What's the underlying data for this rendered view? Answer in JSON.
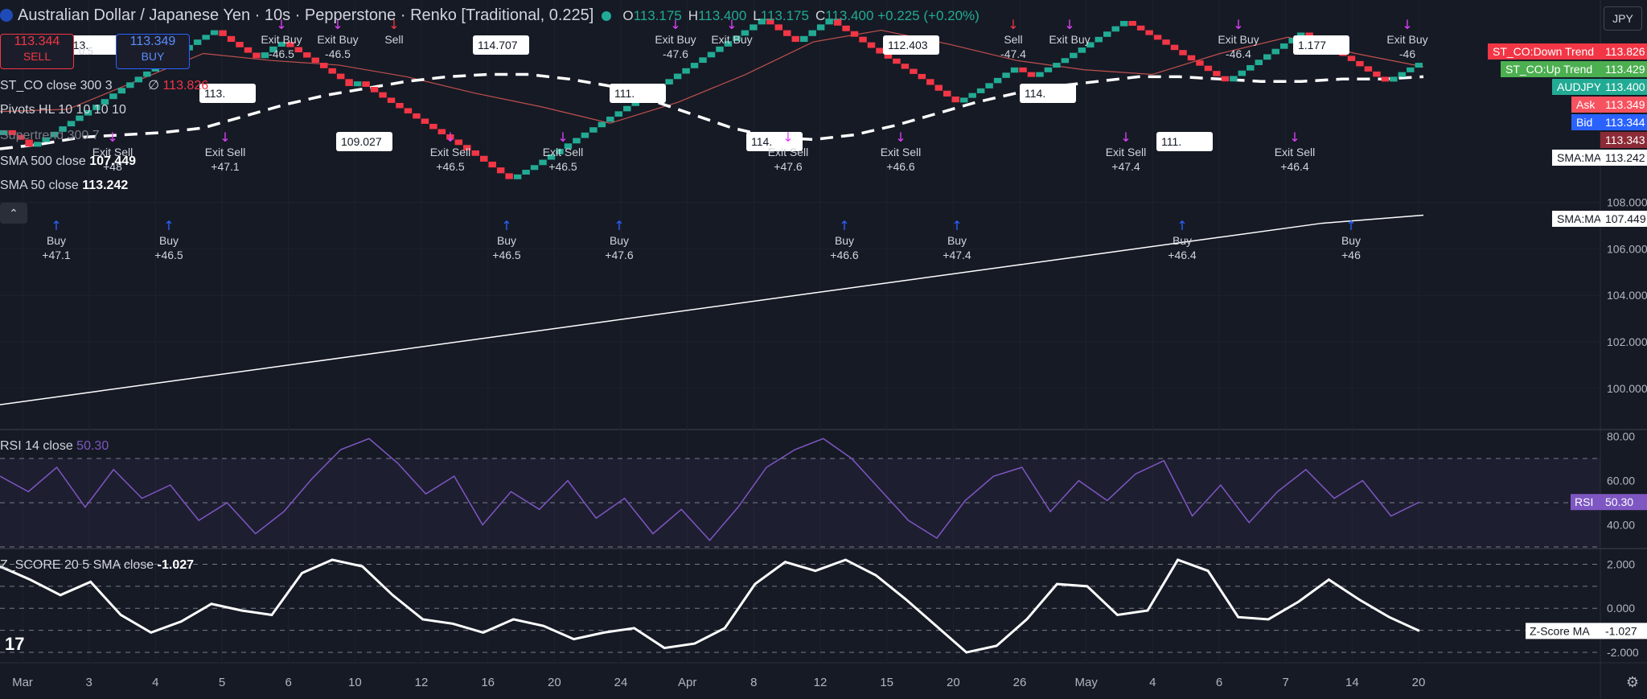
{
  "header": {
    "title": "Australian Dollar / Japanese Yen · 10s · Pepperstone · Renko [Traditional, 0.225]",
    "ohlc": {
      "o_label": "O",
      "o": "113.175",
      "h_label": "H",
      "h": "113.400",
      "l_label": "L",
      "l": "113.175",
      "c_label": "C",
      "c": "113.400",
      "change": "+0.225 (+0.20%)"
    }
  },
  "trade": {
    "sell_price": "113.344",
    "sell_label": "SELL",
    "buy_price": "113.349",
    "buy_label": "BUY",
    "spread": "0.5"
  },
  "legend": {
    "st_co": "ST_CO close 300 3",
    "st_co_value": "113.826",
    "pivots": "Pivots HL 10 10 10 10",
    "supertrend": "Supertrend 300 7",
    "sma500": "SMA 500 close",
    "sma500_value": "107.449",
    "sma50": "SMA 50 close",
    "sma50_value": "113.242",
    "rsi": "RSI 14 close",
    "rsi_value": "50.30",
    "z": "Z_SCORE 20 5 SMA close",
    "z_value": "-1.027"
  },
  "currency_button": "JPY",
  "colors": {
    "up": "#22ab94",
    "down": "#f23645",
    "buy_arrow": "#2962ff",
    "exit_marker": "#e040fb",
    "rsi": "#7e57c2",
    "background": "#161a25",
    "sma": "#ffffff"
  },
  "chart_data": [
    {
      "type": "line",
      "title": "Renko AUDJPY",
      "x_ticks": [
        "Mar",
        "3",
        "4",
        "5",
        "6",
        "10",
        "12",
        "16",
        "20",
        "24",
        "Apr",
        "8",
        "12",
        "15",
        "20",
        "26",
        "May",
        "4",
        "6",
        "7",
        "14",
        "20"
      ],
      "y_ticks": [
        "100.000",
        "102.000",
        "104.000",
        "106.000",
        "108.000"
      ],
      "ylim": [
        98.3,
        116.7
      ],
      "series": [
        {
          "name": "AUDJPY renko close",
          "values": [
            110.9,
            111.1,
            110.7,
            110.4,
            110.6,
            110.8,
            112.2,
            113.4,
            114.3,
            115.0,
            115.4,
            114.9,
            114.2,
            114.7,
            114.9,
            114.0,
            113.3,
            113.0,
            113.2,
            112.5,
            111.6,
            110.7,
            110.0,
            109.0,
            109.6,
            111.0,
            112.6,
            114.0,
            115.4,
            115.9,
            114.9,
            115.9,
            115.6,
            114.4,
            113.3,
            112.3,
            112.9,
            113.8,
            113.4,
            113.6,
            114.2,
            115.8,
            115.0,
            114.1,
            113.2,
            113.9,
            115.3,
            114.9,
            114.3,
            113.4,
            113.2,
            114.0
          ]
        },
        {
          "name": "SMA 50",
          "values": [
            110.3,
            110.5,
            110.8,
            110.9,
            111.0,
            111.2,
            111.7,
            112.2,
            112.6,
            112.9,
            113.2,
            113.4,
            113.5,
            113.5,
            113.3,
            113.0,
            112.4,
            111.8,
            111.2,
            110.8,
            110.7,
            110.9,
            111.3,
            111.8,
            112.3,
            112.7,
            113.0,
            113.2,
            113.4,
            113.4,
            113.3,
            113.2,
            113.2,
            113.3,
            113.3,
            113.4
          ]
        },
        {
          "name": "SMA 500",
          "values": [
            99.3,
            99.9,
            100.5,
            101.1,
            101.7,
            102.3,
            102.9,
            103.5,
            104.1,
            104.7,
            105.3,
            105.9,
            106.5,
            107.1,
            107.45
          ]
        },
        {
          "name": "ST_CO",
          "values": [
            111.9,
            112.0,
            113.2,
            114.4,
            114.1,
            113.9,
            113.4,
            112.7,
            112.1,
            111.4,
            112.3,
            113.5,
            114.9,
            115.4,
            114.8,
            114.1,
            113.7,
            113.5,
            114.4,
            115.1,
            114.4,
            113.83
          ]
        }
      ],
      "right_labels": [
        {
          "name": "ST_CO:Down Trend",
          "value": "113.826"
        },
        {
          "name": "ST_CO:Up Trend",
          "value": "113.429"
        },
        {
          "name": "AUDJPY",
          "value": "113.400"
        },
        {
          "name": "Ask",
          "value": "113.349"
        },
        {
          "name": "Bid",
          "value": "113.344"
        },
        {
          "name": "",
          "value": "113.343"
        },
        {
          "name": "SMA:MA",
          "value": "113.242"
        },
        {
          "name": "SMA:MA",
          "value": "107.449"
        }
      ],
      "pivot_labels": [
        "113.",
        "113.",
        "109.027",
        "114.707",
        "111.",
        "114.",
        "112.403",
        "114.",
        "111.",
        "1.177"
      ],
      "signals": [
        {
          "label": "Buy",
          "value": "+47.1"
        },
        {
          "label": "Exit Sell",
          "value": "+48"
        },
        {
          "label": "Buy",
          "value": "+46.5"
        },
        {
          "label": "Exit Sell",
          "value": "+47.1"
        },
        {
          "label": "Exit Buy",
          "value": "-46.5"
        },
        {
          "label": "Exit Buy",
          "value": "-46.5"
        },
        {
          "label": "Sell",
          "value": ""
        },
        {
          "label": "Exit Sell",
          "value": "+46.5"
        },
        {
          "label": "Buy",
          "value": "+46.5"
        },
        {
          "label": "Exit Sell",
          "value": "+46.5"
        },
        {
          "label": "Buy",
          "value": "+47.6"
        },
        {
          "label": "Exit Buy",
          "value": "-47.6"
        },
        {
          "label": "Exit Buy",
          "value": ""
        },
        {
          "label": "Exit Sell",
          "value": "+47.6"
        },
        {
          "label": "Buy",
          "value": "+46.6"
        },
        {
          "label": "Exit Sell",
          "value": "+46.6"
        },
        {
          "label": "Buy",
          "value": "+47.4"
        },
        {
          "label": "Sell",
          "value": "-47.4"
        },
        {
          "label": "Exit Buy",
          "value": ""
        },
        {
          "label": "Exit Sell",
          "value": "+47.4"
        },
        {
          "label": "Buy",
          "value": "+46.4"
        },
        {
          "label": "Exit Buy",
          "value": "-46.4"
        },
        {
          "label": "Exit Sell",
          "value": "+46.4"
        },
        {
          "label": "Buy",
          "value": "+46"
        },
        {
          "label": "Exit Buy",
          "value": "-46"
        }
      ]
    },
    {
      "type": "line",
      "title": "RSI 14 close",
      "y_ticks": [
        "40.00",
        "60.00",
        "80.00"
      ],
      "ylim": [
        30,
        82
      ],
      "values": [
        62,
        55,
        66,
        48,
        65,
        52,
        58,
        42,
        50,
        36,
        46,
        61,
        74,
        79,
        68,
        54,
        62,
        40,
        55,
        47,
        60,
        43,
        52,
        36,
        47,
        33,
        48,
        66,
        74,
        79,
        70,
        56,
        42,
        34,
        51,
        62,
        66,
        46,
        60,
        51,
        63,
        69,
        44,
        58,
        41,
        55,
        65,
        52,
        60,
        44,
        50.3
      ],
      "marker_label": "RSI",
      "marker_value": "50.30",
      "levels": [
        70,
        50,
        30
      ]
    },
    {
      "type": "line",
      "title": "Z_SCORE 20 5 SMA close",
      "y_ticks": [
        "2.000",
        "0.000",
        "-2.000"
      ],
      "ylim": [
        -2.4,
        2.6
      ],
      "values": [
        1.9,
        1.3,
        0.6,
        1.2,
        -0.3,
        -1.1,
        -0.6,
        0.2,
        -0.1,
        -0.3,
        1.6,
        2.2,
        1.9,
        0.6,
        -0.5,
        -0.7,
        -1.1,
        -0.5,
        -0.8,
        -1.4,
        -1.1,
        -0.9,
        -1.8,
        -1.6,
        -0.9,
        1.1,
        2.1,
        1.7,
        2.2,
        1.5,
        0.4,
        -0.8,
        -2.0,
        -1.7,
        -0.5,
        1.1,
        1.0,
        -0.3,
        -0.1,
        2.2,
        1.7,
        -0.4,
        -0.5,
        0.3,
        1.3,
        0.4,
        -0.4,
        -1.027
      ],
      "marker_label": "Z-Score MA",
      "marker_value": "-1.027",
      "levels": [
        2,
        1,
        0,
        -1,
        -2
      ]
    }
  ]
}
